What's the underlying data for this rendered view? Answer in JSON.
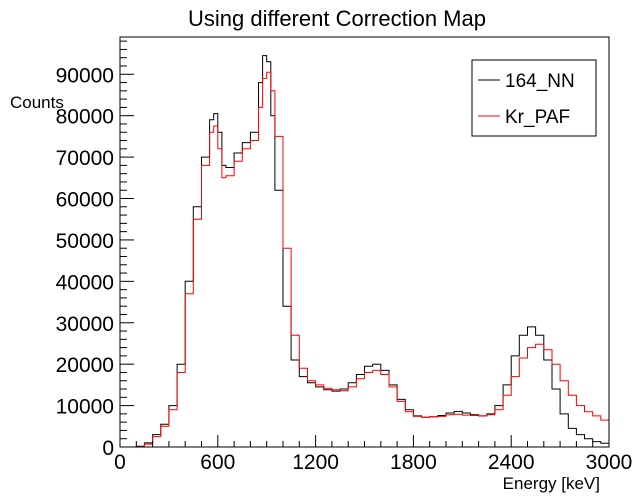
{
  "chart_data": {
    "type": "line",
    "title": "Using different Correction Map",
    "xlabel": "Energy [keV]",
    "ylabel": "Counts",
    "xlim": [
      0,
      3000
    ],
    "ylim": [
      0,
      99000
    ],
    "xticks": [
      0,
      600,
      1200,
      1800,
      2400,
      3000
    ],
    "yticks": [
      0,
      10000,
      20000,
      30000,
      40000,
      50000,
      60000,
      70000,
      80000,
      90000
    ],
    "grid": false,
    "legend_position": "top-right",
    "style": "step histogram",
    "x": [
      0,
      50,
      100,
      150,
      200,
      250,
      300,
      350,
      400,
      450,
      500,
      550,
      575,
      600,
      625,
      650,
      700,
      750,
      800,
      850,
      875,
      900,
      925,
      950,
      1000,
      1050,
      1100,
      1150,
      1200,
      1250,
      1300,
      1350,
      1400,
      1450,
      1500,
      1550,
      1600,
      1650,
      1700,
      1750,
      1800,
      1850,
      1900,
      1950,
      2000,
      2050,
      2100,
      2150,
      2200,
      2250,
      2300,
      2350,
      2400,
      2450,
      2500,
      2550,
      2600,
      2650,
      2700,
      2750,
      2800,
      2850,
      2900,
      2950,
      3000
    ],
    "series": [
      {
        "name": "164_NN",
        "color": "#000000",
        "values": [
          0,
          0,
          200,
          1000,
          3000,
          5500,
          10000,
          20000,
          40000,
          58000,
          70000,
          79000,
          80500,
          76000,
          68000,
          67500,
          71000,
          73500,
          76000,
          88000,
          94500,
          93000,
          80000,
          62000,
          34000,
          21000,
          17000,
          15500,
          14500,
          13800,
          13500,
          14000,
          15500,
          17500,
          19500,
          20000,
          18500,
          15000,
          11500,
          9000,
          7500,
          7200,
          7300,
          7600,
          8200,
          8600,
          8200,
          7800,
          7500,
          8000,
          10000,
          15000,
          22000,
          27000,
          29000,
          27000,
          21000,
          14000,
          8000,
          4500,
          3000,
          2000,
          1300,
          900,
          600
        ]
      },
      {
        "name": "Kr_PAF",
        "color": "#ff0000",
        "values": [
          0,
          0,
          100,
          700,
          2500,
          5000,
          9000,
          18000,
          37000,
          55000,
          68000,
          76000,
          77500,
          72000,
          65000,
          65500,
          69000,
          72000,
          74000,
          82000,
          89000,
          90500,
          86000,
          75000,
          48000,
          27000,
          19000,
          16000,
          15000,
          14200,
          13800,
          13600,
          14500,
          16500,
          18000,
          18500,
          17500,
          14500,
          11000,
          8500,
          7400,
          7200,
          7300,
          7400,
          7800,
          7900,
          7700,
          7600,
          7500,
          7800,
          9000,
          12500,
          17000,
          21500,
          24000,
          24800,
          23500,
          20000,
          16000,
          12500,
          10000,
          8500,
          7500,
          6500,
          5800
        ]
      }
    ]
  }
}
